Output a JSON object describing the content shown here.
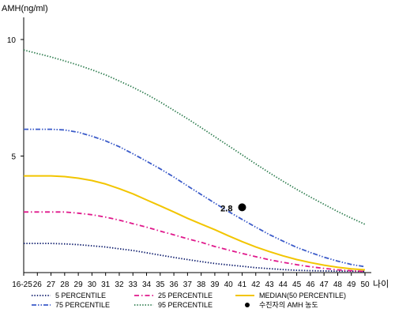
{
  "chart_data": {
    "type": "line",
    "ylabel": "AMH(ng/ml)",
    "xlabel": "나이",
    "x_ticks": [
      "16-25",
      "26",
      "27",
      "28",
      "29",
      "30",
      "31",
      "32",
      "33",
      "34",
      "35",
      "36",
      "37",
      "38",
      "39",
      "40",
      "41",
      "42",
      "43",
      "44",
      "45",
      "46",
      "47",
      "48",
      "49",
      "50"
    ],
    "y_ticks": [
      5,
      10
    ],
    "ylim": [
      0,
      11
    ],
    "grid": false,
    "legend_position": "bottom",
    "series": [
      {
        "name": "5 PERCENTILE",
        "color": "#0b1a6b",
        "dash": "dotted",
        "x": [
          "16-25",
          "26",
          "27",
          "28",
          "29",
          "30",
          "31",
          "32",
          "33",
          "34",
          "35",
          "36",
          "37",
          "38",
          "39",
          "40",
          "41",
          "42",
          "43",
          "44",
          "45",
          "46",
          "47",
          "48",
          "49",
          "50"
        ],
        "values": [
          1.25,
          1.25,
          1.25,
          1.23,
          1.2,
          1.15,
          1.1,
          1.02,
          0.95,
          0.85,
          0.75,
          0.65,
          0.56,
          0.47,
          0.39,
          0.33,
          0.27,
          0.21,
          0.17,
          0.13,
          0.1,
          0.08,
          0.07,
          0.06,
          0.06,
          0.05
        ]
      },
      {
        "name": "25 PERCENTILE",
        "color": "#e0198c",
        "dash": "dashdot",
        "x": [
          "16-25",
          "26",
          "27",
          "28",
          "29",
          "30",
          "31",
          "32",
          "33",
          "34",
          "35",
          "36",
          "37",
          "38",
          "39",
          "40",
          "41",
          "42",
          "43",
          "44",
          "45",
          "46",
          "47",
          "48",
          "49",
          "50"
        ],
        "values": [
          2.6,
          2.6,
          2.6,
          2.6,
          2.55,
          2.48,
          2.38,
          2.25,
          2.1,
          1.95,
          1.78,
          1.62,
          1.45,
          1.3,
          1.12,
          0.97,
          0.82,
          0.68,
          0.55,
          0.44,
          0.34,
          0.25,
          0.18,
          0.12,
          0.08,
          0.05
        ]
      },
      {
        "name": "MEDIAN(50 PERCENTILE)",
        "color": "#f2c500",
        "dash": "solid",
        "x": [
          "16-25",
          "26",
          "27",
          "28",
          "29",
          "30",
          "31",
          "32",
          "33",
          "34",
          "35",
          "36",
          "37",
          "38",
          "39",
          "40",
          "41",
          "42",
          "43",
          "44",
          "45",
          "46",
          "47",
          "48",
          "49",
          "50"
        ],
        "values": [
          4.15,
          4.15,
          4.15,
          4.12,
          4.05,
          3.95,
          3.8,
          3.6,
          3.38,
          3.12,
          2.86,
          2.6,
          2.33,
          2.08,
          1.84,
          1.58,
          1.33,
          1.1,
          0.9,
          0.72,
          0.56,
          0.43,
          0.32,
          0.23,
          0.16,
          0.12
        ]
      },
      {
        "name": "75 PERCENTILE",
        "color": "#3b5bc9",
        "dash": "dashdotdot",
        "x": [
          "16-25",
          "26",
          "27",
          "28",
          "29",
          "30",
          "31",
          "32",
          "33",
          "34",
          "35",
          "36",
          "37",
          "38",
          "39",
          "40",
          "41",
          "42",
          "43",
          "44",
          "45",
          "46",
          "47",
          "48",
          "49",
          "50"
        ],
        "values": [
          6.15,
          6.15,
          6.15,
          6.12,
          6.02,
          5.85,
          5.65,
          5.4,
          5.1,
          4.78,
          4.45,
          4.1,
          3.72,
          3.35,
          2.98,
          2.62,
          2.28,
          1.95,
          1.63,
          1.35,
          1.08,
          0.86,
          0.66,
          0.49,
          0.35,
          0.25
        ]
      },
      {
        "name": "95 PERCENTILE",
        "color": "#2e7d4f",
        "dash": "dotted",
        "x": [
          "16-25",
          "26",
          "27",
          "28",
          "29",
          "30",
          "31",
          "32",
          "33",
          "34",
          "35",
          "36",
          "37",
          "38",
          "39",
          "40",
          "41",
          "42",
          "43",
          "44",
          "45",
          "46",
          "47",
          "48",
          "49",
          "50"
        ],
        "values": [
          9.55,
          9.4,
          9.25,
          9.08,
          8.9,
          8.7,
          8.48,
          8.22,
          7.95,
          7.65,
          7.32,
          6.96,
          6.6,
          6.22,
          5.83,
          5.44,
          5.05,
          4.66,
          4.28,
          3.92,
          3.57,
          3.24,
          2.93,
          2.62,
          2.34,
          2.07
        ]
      }
    ],
    "points": [
      {
        "name": "수진자의 AMH 농도",
        "x": "41",
        "value": 2.8,
        "label": "2.8",
        "color": "#000000"
      }
    ]
  }
}
